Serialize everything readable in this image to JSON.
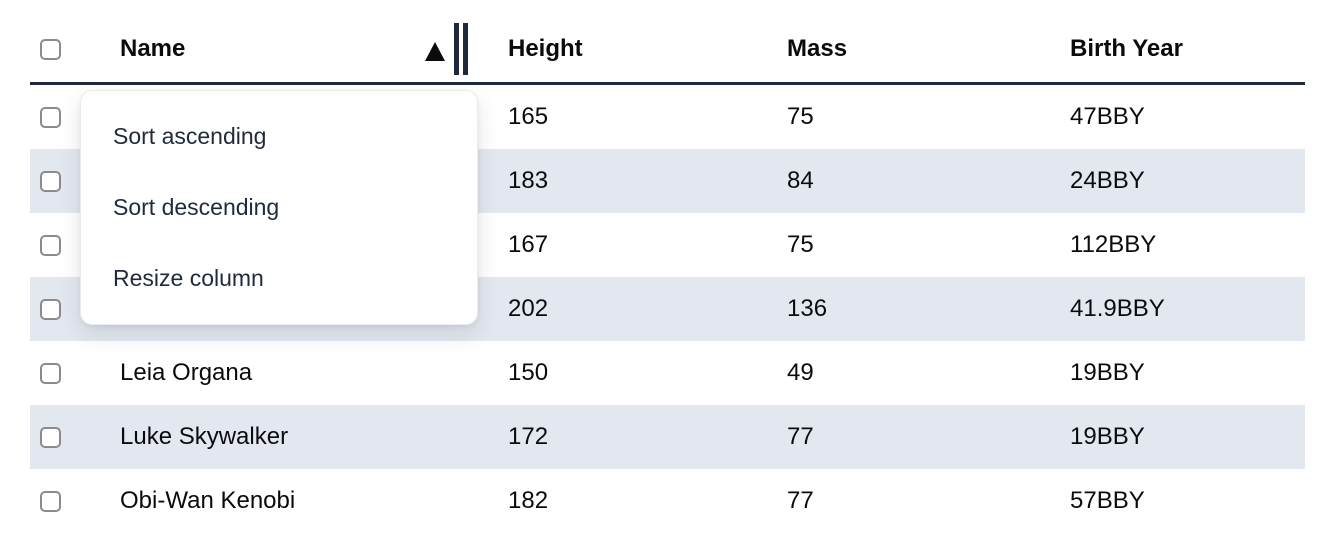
{
  "colors": {
    "accent_dark": "#1e293b",
    "row_stripe": "#e3e8f0",
    "text_primary": "#0b0b0d",
    "menu_text": "#1f2a3d",
    "checkbox_border": "#8a8a90",
    "menu_border": "#e9ebee"
  },
  "header": {
    "columns": {
      "name": {
        "label": "Name",
        "sorted": "ascending"
      },
      "height": {
        "label": "Height"
      },
      "mass": {
        "label": "Mass"
      },
      "birth_year": {
        "label": "Birth Year"
      }
    },
    "sort_icon": "ascending-triangle",
    "resize_icon": "double-bar-resize-handle"
  },
  "context_menu": {
    "items": [
      {
        "label": "Sort ascending"
      },
      {
        "label": "Sort descending"
      },
      {
        "label": "Resize column"
      }
    ]
  },
  "table": {
    "rows": [
      {
        "name": "",
        "height": "165",
        "mass": "75",
        "birth_year": "47BBY"
      },
      {
        "name": "",
        "height": "183",
        "mass": "84",
        "birth_year": "24BBY"
      },
      {
        "name": "",
        "height": "167",
        "mass": "75",
        "birth_year": "112BBY"
      },
      {
        "name": "",
        "height": "202",
        "mass": "136",
        "birth_year": "41.9BBY"
      },
      {
        "name": "Leia Organa",
        "height": "150",
        "mass": "49",
        "birth_year": "19BBY"
      },
      {
        "name": "Luke Skywalker",
        "height": "172",
        "mass": "77",
        "birth_year": "19BBY"
      },
      {
        "name": "Obi-Wan Kenobi",
        "height": "182",
        "mass": "77",
        "birth_year": "57BBY"
      }
    ]
  }
}
